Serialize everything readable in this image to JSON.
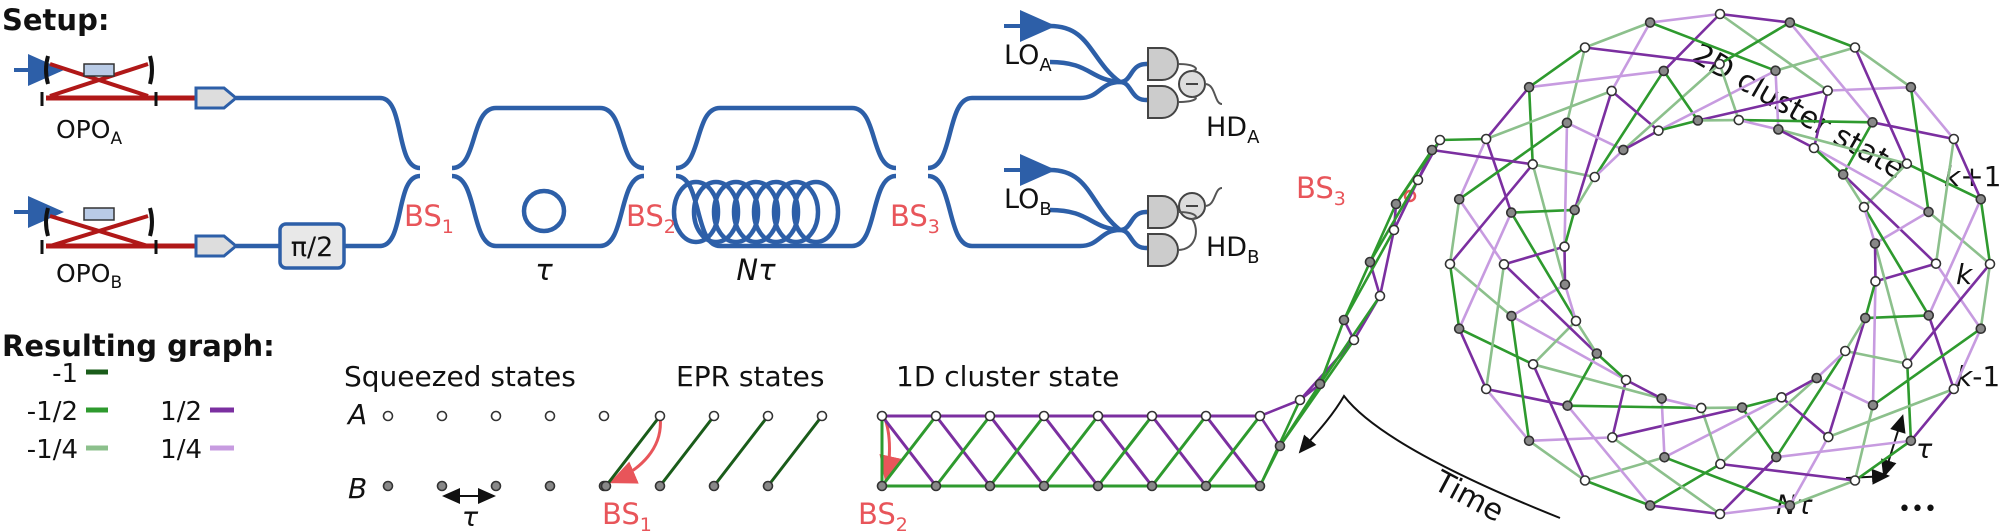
{
  "setup_title": "Setup:",
  "graph_title": "Resulting graph:",
  "opo": {
    "name": "OPO",
    "sub_a": "A",
    "sub_b": "B"
  },
  "phase_shifter": "π/2",
  "beam_splitters": {
    "name": "BS",
    "bs1": "1",
    "bs2": "2",
    "bs3": "3"
  },
  "delays": {
    "tau": "τ",
    "n_tau_n": "N",
    "n_tau_tau": "τ"
  },
  "local_oscillators": {
    "name": "LO",
    "sub_a": "A",
    "sub_b": "B"
  },
  "homodyne": {
    "name": "HD",
    "sub_a": "A",
    "sub_b": "B"
  },
  "legend": {
    "w_m1": "-1",
    "w_m12": "-1/2",
    "w_p12": "1/2",
    "w_m14": "-1/4",
    "w_p14": "1/4"
  },
  "stages": {
    "squeezed": "Squeezed states",
    "epr": "EPR states",
    "cluster1d": "1D cluster state",
    "cluster2d": "2D cluster state"
  },
  "rows": {
    "a": "A",
    "b": "B"
  },
  "spacing_tau": "τ",
  "ring_labels": {
    "k_plus": "k+1",
    "k": "k",
    "k_minus": "k-1",
    "tau": "τ",
    "n": "N",
    "n_tau": "τ",
    "dots": "•••"
  },
  "time_label": "Time",
  "colors": {
    "w_m1": "#1a5c1a",
    "w_m12": "#2e9a2e",
    "w_p12": "#7b2fa0",
    "w_m14": "#8cc08c",
    "w_p14": "#c79be0",
    "fiber": "#2d5fa8",
    "laser": "#2d5fa8",
    "cavity": "#b01818",
    "annotation": "#e8555a"
  }
}
